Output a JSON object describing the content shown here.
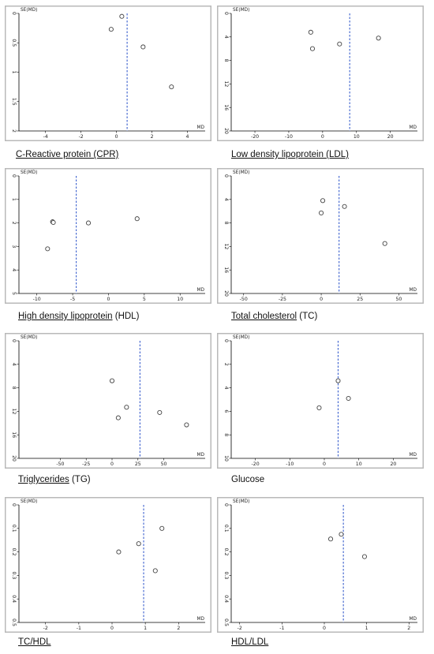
{
  "chart_data": [
    {
      "type": "scatter",
      "title": "C-Reactive protein (CPR)",
      "title_parts": [
        {
          "text": "C-Reactive protein (CPR)",
          "u": true
        }
      ],
      "xlabel": "MD",
      "ylabel": "SE(MD)",
      "xlim": [
        -5.5,
        5
      ],
      "ylim": [
        0,
        2
      ],
      "y_reversed": true,
      "xticks": [
        -4,
        -2,
        0,
        2,
        4
      ],
      "yticks": [
        0,
        0.5,
        1,
        1.5,
        2
      ],
      "ytick_labels": [
        "0",
        "0.5",
        "1",
        "1.5",
        "2"
      ],
      "ref_line_x": 0.6,
      "points": [
        {
          "x": 0.3,
          "y": 0.05
        },
        {
          "x": -0.3,
          "y": 0.27
        },
        {
          "x": 1.5,
          "y": 0.57
        },
        {
          "x": 3.1,
          "y": 1.25
        }
      ]
    },
    {
      "type": "scatter",
      "title": "Low density lipoprotein (LDL)",
      "title_parts": [
        {
          "text": "Low density lipoprotein (LDL)",
          "u": true
        }
      ],
      "xlabel": "MD",
      "ylabel": "SE(MD)",
      "xlim": [
        -27,
        28
      ],
      "ylim": [
        0,
        20
      ],
      "y_reversed": true,
      "xticks": [
        -20,
        -10,
        0,
        10,
        20
      ],
      "yticks": [
        0,
        4,
        8,
        12,
        16,
        20
      ],
      "ytick_labels": [
        "0",
        "4",
        "8",
        "12",
        "16",
        "20"
      ],
      "ref_line_x": 8,
      "points": [
        {
          "x": -3.5,
          "y": 3.2
        },
        {
          "x": -3,
          "y": 6
        },
        {
          "x": 5,
          "y": 5.2
        },
        {
          "x": 16.5,
          "y": 4.2
        }
      ]
    },
    {
      "type": "scatter",
      "title": "High density lipoprotein (HDL)",
      "title_parts": [
        {
          "text": "High density lipoprotein",
          "u": true
        },
        {
          "text": " (HDL)",
          "u": false
        }
      ],
      "xlabel": "MD",
      "ylabel": "SE(MD)",
      "xlim": [
        -12.5,
        13.5
      ],
      "ylim": [
        0,
        5
      ],
      "y_reversed": true,
      "xticks": [
        -10,
        -5,
        0,
        5,
        10
      ],
      "yticks": [
        0,
        1,
        2,
        3,
        4,
        5
      ],
      "ytick_labels": [
        "0",
        "1",
        "2",
        "3",
        "4",
        "5"
      ],
      "ref_line_x": -4.5,
      "points": [
        {
          "x": -7.8,
          "y": 1.95
        },
        {
          "x": -7.7,
          "y": 1.98
        },
        {
          "x": -8.5,
          "y": 3.1
        },
        {
          "x": -2.8,
          "y": 2.0
        },
        {
          "x": 4,
          "y": 1.82
        }
      ]
    },
    {
      "type": "scatter",
      "title": "Total cholesterol (TC)",
      "title_parts": [
        {
          "text": "Total cholesterol",
          "u": true
        },
        {
          "text": " (TC)",
          "u": false
        }
      ],
      "xlabel": "MD",
      "ylabel": "SE(MD)",
      "xlim": [
        -58,
        62
      ],
      "ylim": [
        0,
        20
      ],
      "y_reversed": true,
      "xticks": [
        -50,
        -25,
        0,
        25,
        50
      ],
      "yticks": [
        0,
        4,
        8,
        12,
        16,
        20
      ],
      "ytick_labels": [
        "0",
        "4",
        "8",
        "12",
        "16",
        "20"
      ],
      "ref_line_x": 11.5,
      "points": [
        {
          "x": 1,
          "y": 4.2
        },
        {
          "x": 0,
          "y": 6.3
        },
        {
          "x": 15,
          "y": 5.2
        },
        {
          "x": 41,
          "y": 11.5
        }
      ]
    },
    {
      "type": "scatter",
      "title": "Triglycerides (TG)",
      "title_parts": [
        {
          "text": "Triglycerides",
          "u": true
        },
        {
          "text": " (TG)",
          "u": false
        }
      ],
      "xlabel": "MD",
      "ylabel": "SE(MD)",
      "xlim": [
        -90,
        90
      ],
      "ylim": [
        0,
        20
      ],
      "y_reversed": true,
      "xticks": [
        -50,
        -25,
        0,
        25,
        50
      ],
      "yticks": [
        0,
        4,
        8,
        12,
        16,
        20
      ],
      "ytick_labels": [
        "0",
        "4",
        "8",
        "12",
        "16",
        "20"
      ],
      "ref_line_x": 27,
      "points": [
        {
          "x": 0,
          "y": 6.8
        },
        {
          "x": 14,
          "y": 11.3
        },
        {
          "x": 6,
          "y": 13.1
        },
        {
          "x": 46,
          "y": 12.2
        },
        {
          "x": 72,
          "y": 14.3
        }
      ]
    },
    {
      "type": "scatter",
      "title": "Glucose",
      "title_parts": [
        {
          "text": "Glucose",
          "u": false
        }
      ],
      "xlabel": "MD",
      "ylabel": "SE(MD)",
      "xlim": [
        -27,
        27
      ],
      "ylim": [
        0,
        10
      ],
      "y_reversed": true,
      "xticks": [
        -20,
        -10,
        0,
        10,
        20
      ],
      "yticks": [
        0,
        2,
        4,
        6,
        8,
        10
      ],
      "ytick_labels": [
        "0",
        "2",
        "4",
        "6",
        "8",
        "10"
      ],
      "ref_line_x": 4,
      "points": [
        {
          "x": 4,
          "y": 3.4
        },
        {
          "x": 7,
          "y": 4.9
        },
        {
          "x": -1.5,
          "y": 5.7
        }
      ]
    },
    {
      "type": "scatter",
      "title": "TC/HDL",
      "title_parts": [
        {
          "text": "TC/HDL",
          "u": true
        }
      ],
      "xlabel": "MD",
      "ylabel": "SE(MD)",
      "xlim": [
        -2.8,
        2.8
      ],
      "ylim": [
        0,
        0.5
      ],
      "y_reversed": true,
      "xticks": [
        -2,
        -1,
        0,
        1,
        2
      ],
      "yticks": [
        0,
        0.1,
        0.2,
        0.3,
        0.4,
        0.5
      ],
      "ytick_labels": [
        "0",
        "0.1",
        "0.2",
        "0.3",
        "0.4",
        "0.5"
      ],
      "ref_line_x": 0.95,
      "points": [
        {
          "x": 1.5,
          "y": 0.1
        },
        {
          "x": 0.8,
          "y": 0.165
        },
        {
          "x": 0.2,
          "y": 0.2
        },
        {
          "x": 1.3,
          "y": 0.28
        }
      ]
    },
    {
      "type": "scatter",
      "title": "HDL/LDL",
      "title_parts": [
        {
          "text": "HDL/LDL",
          "u": true
        }
      ],
      "xlabel": "MD",
      "ylabel": "SE(MD)",
      "xlim": [
        -2.2,
        2.2
      ],
      "ylim": [
        0,
        0.5
      ],
      "y_reversed": true,
      "xticks": [
        -2,
        -1,
        0,
        1,
        2
      ],
      "yticks": [
        0,
        0.1,
        0.2,
        0.3,
        0.4,
        0.5
      ],
      "ytick_labels": [
        "0",
        "0.1",
        "0.2",
        "0.3",
        "0.4",
        "0.5"
      ],
      "ref_line_x": 0.45,
      "points": [
        {
          "x": 0.4,
          "y": 0.125
        },
        {
          "x": 0.15,
          "y": 0.145
        },
        {
          "x": 0.95,
          "y": 0.22
        }
      ]
    }
  ]
}
